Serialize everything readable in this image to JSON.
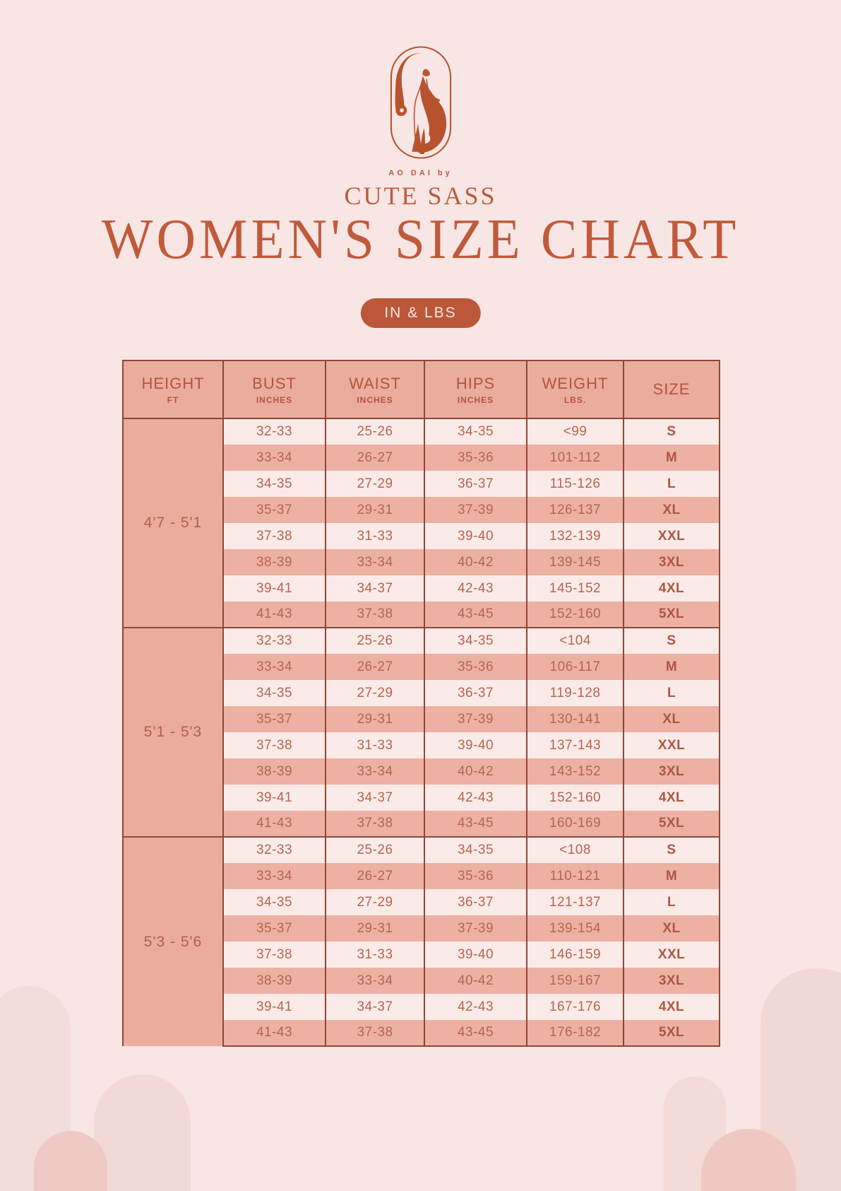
{
  "logo": {
    "brand_prefix": "AO DAI by",
    "brand_name": "CUTE SASS"
  },
  "title": "WOMEN'S SIZE CHART",
  "badge": "IN & LBS",
  "table": {
    "columns": [
      {
        "label": "HEIGHT",
        "sublabel": "FT"
      },
      {
        "label": "BUST",
        "sublabel": "INCHES"
      },
      {
        "label": "WAIST",
        "sublabel": "INCHES"
      },
      {
        "label": "HIPS",
        "sublabel": "INCHES"
      },
      {
        "label": "WEIGHT",
        "sublabel": "LBS."
      },
      {
        "label": "SIZE",
        "sublabel": ""
      }
    ],
    "groups": [
      {
        "height": "4'7 - 5'1",
        "rows": [
          {
            "bust": "32-33",
            "waist": "25-26",
            "hips": "34-35",
            "weight": "<99",
            "size": "S"
          },
          {
            "bust": "33-34",
            "waist": "26-27",
            "hips": "35-36",
            "weight": "101-112",
            "size": "M"
          },
          {
            "bust": "34-35",
            "waist": "27-29",
            "hips": "36-37",
            "weight": "115-126",
            "size": "L"
          },
          {
            "bust": "35-37",
            "waist": "29-31",
            "hips": "37-39",
            "weight": "126-137",
            "size": "XL"
          },
          {
            "bust": "37-38",
            "waist": "31-33",
            "hips": "39-40",
            "weight": "132-139",
            "size": "XXL"
          },
          {
            "bust": "38-39",
            "waist": "33-34",
            "hips": "40-42",
            "weight": "139-145",
            "size": "3XL"
          },
          {
            "bust": "39-41",
            "waist": "34-37",
            "hips": "42-43",
            "weight": "145-152",
            "size": "4XL"
          },
          {
            "bust": "41-43",
            "waist": "37-38",
            "hips": "43-45",
            "weight": "152-160",
            "size": "5XL"
          }
        ]
      },
      {
        "height": "5'1 - 5'3",
        "rows": [
          {
            "bust": "32-33",
            "waist": "25-26",
            "hips": "34-35",
            "weight": "<104",
            "size": "S"
          },
          {
            "bust": "33-34",
            "waist": "26-27",
            "hips": "35-36",
            "weight": "106-117",
            "size": "M"
          },
          {
            "bust": "34-35",
            "waist": "27-29",
            "hips": "36-37",
            "weight": "119-128",
            "size": "L"
          },
          {
            "bust": "35-37",
            "waist": "29-31",
            "hips": "37-39",
            "weight": "130-141",
            "size": "XL"
          },
          {
            "bust": "37-38",
            "waist": "31-33",
            "hips": "39-40",
            "weight": "137-143",
            "size": "XXL"
          },
          {
            "bust": "38-39",
            "waist": "33-34",
            "hips": "40-42",
            "weight": "143-152",
            "size": "3XL"
          },
          {
            "bust": "39-41",
            "waist": "34-37",
            "hips": "42-43",
            "weight": "152-160",
            "size": "4XL"
          },
          {
            "bust": "41-43",
            "waist": "37-38",
            "hips": "43-45",
            "weight": "160-169",
            "size": "5XL"
          }
        ]
      },
      {
        "height": "5'3 - 5'6",
        "rows": [
          {
            "bust": "32-33",
            "waist": "25-26",
            "hips": "34-35",
            "weight": "<108",
            "size": "S"
          },
          {
            "bust": "33-34",
            "waist": "26-27",
            "hips": "35-36",
            "weight": "110-121",
            "size": "M"
          },
          {
            "bust": "34-35",
            "waist": "27-29",
            "hips": "36-37",
            "weight": "121-137",
            "size": "L"
          },
          {
            "bust": "35-37",
            "waist": "29-31",
            "hips": "37-39",
            "weight": "139-154",
            "size": "XL"
          },
          {
            "bust": "37-38",
            "waist": "31-33",
            "hips": "39-40",
            "weight": "146-159",
            "size": "XXL"
          },
          {
            "bust": "38-39",
            "waist": "33-34",
            "hips": "40-42",
            "weight": "159-167",
            "size": "3XL"
          },
          {
            "bust": "39-41",
            "waist": "34-37",
            "hips": "42-43",
            "weight": "167-176",
            "size": "4XL"
          },
          {
            "bust": "41-43",
            "waist": "37-38",
            "hips": "43-45",
            "weight": "176-182",
            "size": "5XL"
          }
        ]
      }
    ]
  },
  "colors": {
    "page_background": "#F7E6E4",
    "terracotta_text": "#BC5A3C",
    "badge_background": "#BC573A",
    "badge_text": "#F9E6DF",
    "header_fill": "#EAAC9D",
    "stripe_dark": "#ECB1A3",
    "stripe_light": "#FAEBE8",
    "table_border": "#8E4735",
    "arch_light": "#F2D9D5",
    "arch_dark": "#EFC8C2"
  }
}
